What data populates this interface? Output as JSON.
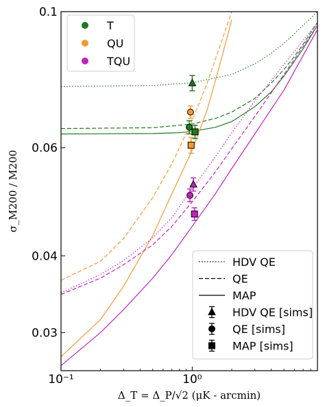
{
  "chart_data": {
    "type": "line",
    "xscale": "log",
    "yscale": "log",
    "xlim": [
      0.1,
      9
    ],
    "ylim": [
      0.026,
      0.1
    ],
    "xlabel": "Δ_T = Δ_P/√2 (μK - arcmin)",
    "ylabel": "σ_M200 / M200",
    "x_ticks": [
      {
        "value": 0.1,
        "label": "10⁻¹"
      },
      {
        "value": 1,
        "label": "10⁰"
      }
    ],
    "y_ticks": [
      {
        "value": 0.03,
        "label": "0.03"
      },
      {
        "value": 0.04,
        "label": "0.04"
      },
      {
        "value": 0.06,
        "label": "0.06"
      },
      {
        "value": 0.1,
        "label": "0.1"
      }
    ],
    "colors": {
      "T": "#1e7a1e",
      "QU": "#f59a30",
      "TQU": "#c023c0"
    },
    "legend_datasets": [
      {
        "label": "T",
        "color": "#1e7a1e"
      },
      {
        "label": "QU",
        "color": "#f59a30"
      },
      {
        "label": "TQU",
        "color": "#c023c0"
      }
    ],
    "legend_methods": [
      {
        "label": "HDV QE",
        "style": "dotted"
      },
      {
        "label": "QE",
        "style": "dashed"
      },
      {
        "label": "MAP",
        "style": "solid"
      },
      {
        "label": "HDV QE [sims]",
        "marker": "triangle"
      },
      {
        "label": "QE [sims]",
        "marker": "circle"
      },
      {
        "label": "MAP [sims]",
        "marker": "square"
      }
    ],
    "series": [
      {
        "dataset": "T",
        "method": "HDV QE",
        "style": "dotted",
        "color": "#1e7a1e",
        "x": [
          0.1,
          0.5,
          1,
          2,
          3,
          4,
          5,
          6,
          7,
          9
        ],
        "y": [
          0.0755,
          0.0758,
          0.0766,
          0.079,
          0.0822,
          0.0855,
          0.0888,
          0.092,
          0.095,
          0.1
        ]
      },
      {
        "dataset": "T",
        "method": "QE",
        "style": "dashed",
        "color": "#1e7a1e",
        "x": [
          0.1,
          0.5,
          1,
          1.5,
          2,
          3,
          4,
          5,
          6,
          7,
          9
        ],
        "y": [
          0.0645,
          0.0647,
          0.0656,
          0.067,
          0.0686,
          0.0722,
          0.0765,
          0.0805,
          0.0845,
          0.0885,
          0.096
        ]
      },
      {
        "dataset": "T",
        "method": "MAP",
        "style": "solid",
        "color": "#1e7a1e",
        "x": [
          0.1,
          0.5,
          0.8,
          1,
          1.5,
          2,
          3,
          4,
          5,
          6,
          7,
          9
        ],
        "y": [
          0.0632,
          0.0633,
          0.0635,
          0.0638,
          0.0648,
          0.0662,
          0.07,
          0.074,
          0.0785,
          0.083,
          0.087,
          0.095
        ]
      },
      {
        "dataset": "QU",
        "method": "QE",
        "style": "dashed",
        "color": "#f59a30",
        "x": [
          0.1,
          0.2,
          0.3,
          0.5,
          0.7,
          1,
          1.3,
          1.6,
          2
        ],
        "y": [
          0.0365,
          0.0392,
          0.0427,
          0.0498,
          0.0565,
          0.0665,
          0.0765,
          0.087,
          0.1
        ]
      },
      {
        "dataset": "QU",
        "method": "MAP",
        "style": "solid",
        "color": "#f59a30",
        "x": [
          0.1,
          0.2,
          0.3,
          0.5,
          0.7,
          1,
          1.3,
          1.6,
          2
        ],
        "y": [
          0.0274,
          0.0315,
          0.0357,
          0.0432,
          0.0505,
          0.0595,
          0.0692,
          0.081,
          0.097
        ]
      },
      {
        "dataset": "TQU",
        "method": "HDV QE",
        "style": "dotted",
        "color": "#c023c0",
        "x": [
          0.1,
          0.2,
          0.3,
          0.5,
          0.7,
          1,
          1.5,
          2,
          3,
          5,
          9
        ],
        "y": [
          0.0348,
          0.0373,
          0.0393,
          0.0428,
          0.0462,
          0.0515,
          0.058,
          0.0635,
          0.0715,
          0.082,
          0.096
        ]
      },
      {
        "dataset": "TQU",
        "method": "QE",
        "style": "dashed",
        "color": "#c023c0",
        "x": [
          0.1,
          0.2,
          0.3,
          0.5,
          0.7,
          1,
          1.5,
          2,
          3,
          5,
          9
        ],
        "y": [
          0.0346,
          0.0368,
          0.0387,
          0.0417,
          0.0447,
          0.049,
          0.0548,
          0.0598,
          0.0675,
          0.079,
          0.095
        ]
      },
      {
        "dataset": "TQU",
        "method": "MAP",
        "style": "solid",
        "color": "#c023c0",
        "x": [
          0.1,
          0.2,
          0.3,
          0.5,
          0.7,
          1,
          1.5,
          2,
          3,
          5,
          9
        ],
        "y": [
          0.0265,
          0.03,
          0.0327,
          0.0368,
          0.0402,
          0.0447,
          0.0505,
          0.0555,
          0.0632,
          0.0745,
          0.0935
        ]
      }
    ],
    "sims": [
      {
        "dataset": "T",
        "method": "HDV QE [sims]",
        "marker": "triangle",
        "x": 1.0,
        "y": 0.0765,
        "err": 0.0022
      },
      {
        "dataset": "T",
        "method": "QE [sims]",
        "marker": "circle",
        "x": 0.95,
        "y": 0.0648,
        "err": 0.0016
      },
      {
        "dataset": "T",
        "method": "MAP [sims]",
        "marker": "square",
        "x": 1.05,
        "y": 0.0637,
        "err": 0.0016
      },
      {
        "dataset": "QU",
        "method": "QE [sims]",
        "marker": "circle",
        "x": 0.97,
        "y": 0.0686,
        "err": 0.0016
      },
      {
        "dataset": "QU",
        "method": "MAP [sims]",
        "marker": "square",
        "x": 0.98,
        "y": 0.0606,
        "err": 0.0018
      },
      {
        "dataset": "TQU",
        "method": "HDV QE [sims]",
        "marker": "triangle",
        "x": 1.02,
        "y": 0.0523,
        "err": 0.0013
      },
      {
        "dataset": "TQU",
        "method": "QE [sims]",
        "marker": "circle",
        "x": 0.96,
        "y": 0.0502,
        "err": 0.0012
      },
      {
        "dataset": "TQU",
        "method": "MAP [sims]",
        "marker": "square",
        "x": 1.04,
        "y": 0.0468,
        "err": 0.0011
      }
    ],
    "legend_placement": [
      "top-left",
      "bottom-right"
    ],
    "grid": false
  }
}
